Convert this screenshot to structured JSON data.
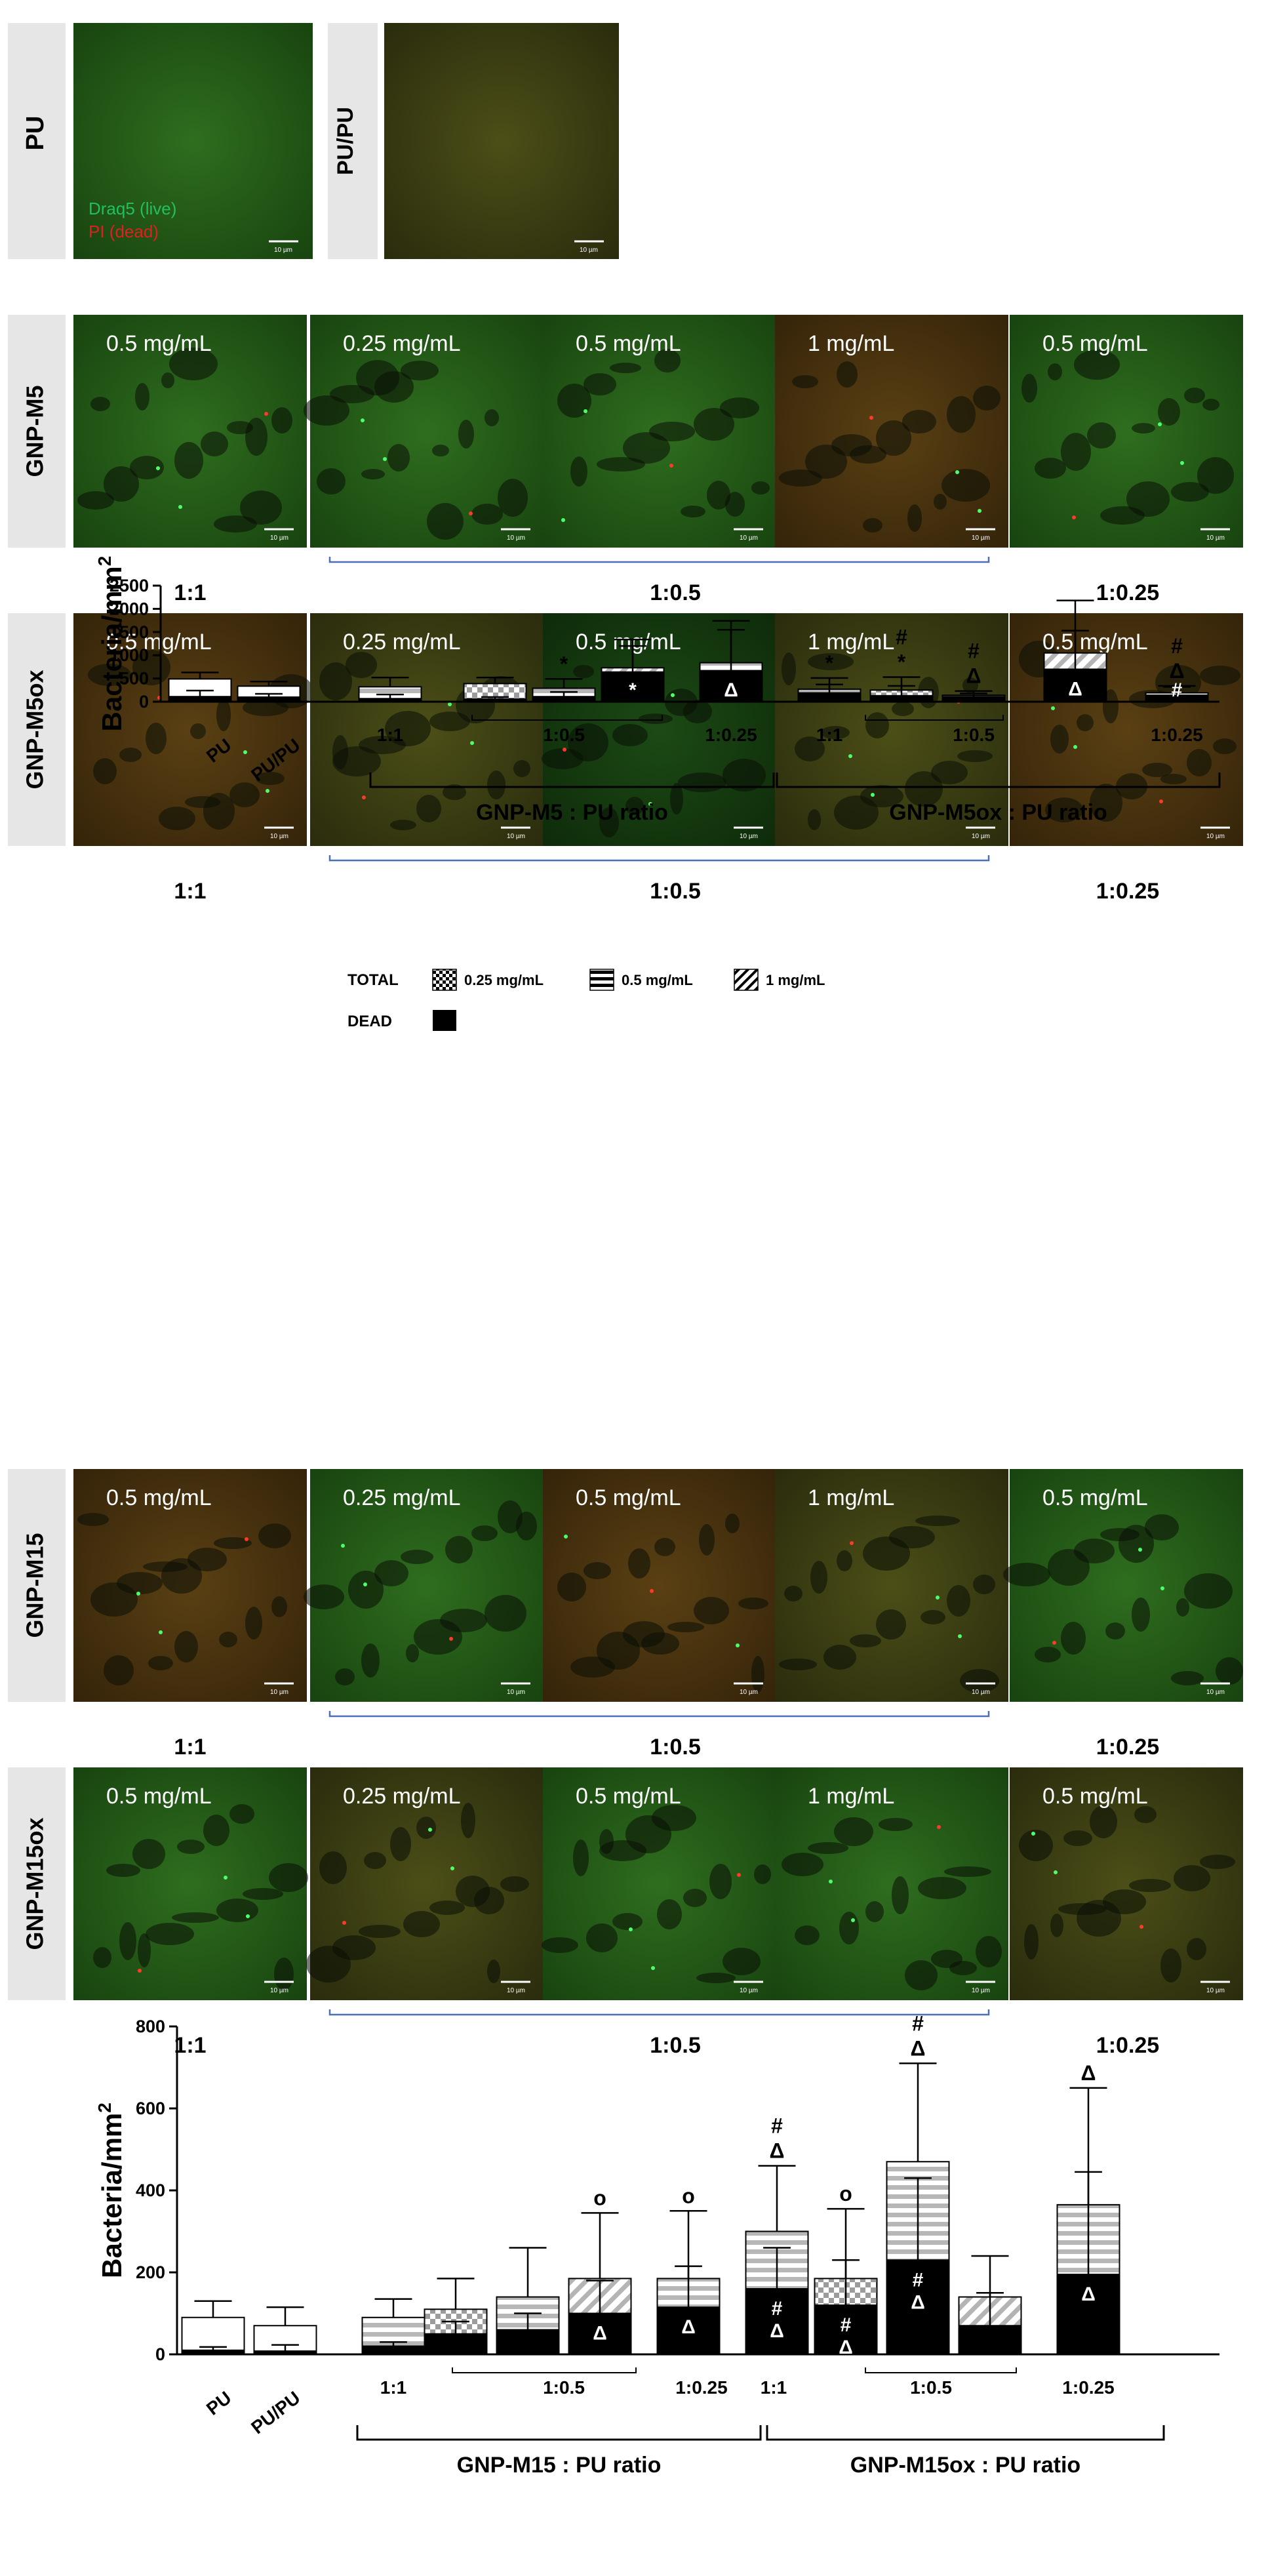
{
  "top_panels": [
    {
      "label": "PU",
      "legend_live": "Draq5 (live)",
      "legend_dead": "PI (dead)",
      "scale": "10 µm",
      "tone": "green"
    },
    {
      "label": "PU/PU",
      "scale": "10 µm",
      "tone": "olive"
    }
  ],
  "micrograph_rows": [
    {
      "row_label": "GNP-M5",
      "tiles": [
        {
          "conc": "0.5 mg/mL",
          "tone": "green"
        },
        {
          "conc": "0.25 mg/mL",
          "tone": "green"
        },
        {
          "conc": "0.5 mg/mL",
          "tone": "green"
        },
        {
          "conc": "1 mg/mL",
          "tone": "brown"
        },
        {
          "conc": "0.5 mg/mL",
          "tone": "green"
        }
      ],
      "ratios": [
        "1:1",
        "1:0.5",
        "1:0.25"
      ]
    },
    {
      "row_label": "GNP-M5ox",
      "tiles": [
        {
          "conc": "0.5 mg/mL",
          "tone": "brown"
        },
        {
          "conc": "0.25 mg/mL",
          "tone": "olive"
        },
        {
          "conc": "0.5 mg/mL",
          "tone": "darkgreen"
        },
        {
          "conc": "1 mg/mL",
          "tone": "olive"
        },
        {
          "conc": "0.5 mg/mL",
          "tone": "brown"
        }
      ],
      "ratios": [
        "1:1",
        "1:0.5",
        "1:0.25"
      ]
    },
    {
      "row_label": "GNP-M15",
      "tiles": [
        {
          "conc": "0.5 mg/mL",
          "tone": "brown"
        },
        {
          "conc": "0.25 mg/mL",
          "tone": "green"
        },
        {
          "conc": "0.5 mg/mL",
          "tone": "brown"
        },
        {
          "conc": "1 mg/mL",
          "tone": "olive"
        },
        {
          "conc": "0.5 mg/mL",
          "tone": "green"
        }
      ],
      "ratios": [
        "1:1",
        "1:0.5",
        "1:0.25"
      ]
    },
    {
      "row_label": "GNP-M15ox",
      "tiles": [
        {
          "conc": "0.5 mg/mL",
          "tone": "green"
        },
        {
          "conc": "0.25 mg/mL",
          "tone": "olive"
        },
        {
          "conc": "0.5 mg/mL",
          "tone": "green"
        },
        {
          "conc": "1 mg/mL",
          "tone": "green"
        },
        {
          "conc": "0.5 mg/mL",
          "tone": "olive"
        }
      ],
      "ratios": [
        "1:1",
        "1:0.5",
        "1:0.25"
      ]
    }
  ],
  "scale_bar": "10 µm",
  "colors": {
    "panel_label_bg": "#e6e6e6",
    "ratio_bracket": "#4a6fb5",
    "legend_live": "#20c060",
    "legend_dead": "#e02020"
  },
  "chart_data": [
    {
      "type": "bar",
      "ylabel": "Bacteria/mm",
      "ylabel_sup": "2",
      "ylim": [
        0,
        2500
      ],
      "yticks": [
        0,
        500,
        1000,
        1500,
        2000,
        2500
      ],
      "legend": {
        "total_label": "TOTAL",
        "dead_label": "DEAD",
        "items": [
          {
            "label": "0.25 mg/mL",
            "pattern": "check"
          },
          {
            "label": "0.5 mg/mL",
            "pattern": "hstripe"
          },
          {
            "label": "1 mg/mL",
            "pattern": "diag"
          }
        ]
      },
      "bars": [
        {
          "total": 490,
          "total_err": 140,
          "dead": 110,
          "dead_err": 130,
          "pattern": "white"
        },
        {
          "total": 335,
          "total_err": 100,
          "dead": 100,
          "dead_err": 70,
          "pattern": "white"
        },
        {
          "total": 320,
          "total_err": 200,
          "dead": 65,
          "dead_err": 90,
          "pattern": "hstripe"
        },
        {
          "total": 390,
          "total_err": 130,
          "dead": 60,
          "dead_err": 40,
          "pattern": "check"
        },
        {
          "total": 290,
          "total_err": 200,
          "dead": 110,
          "dead_err": 100,
          "pattern": "hstripe"
        },
        {
          "total": 730,
          "total_err": 610,
          "dead": 640,
          "dead_err": 560,
          "pattern": "diag"
        },
        {
          "total": 840,
          "total_err": 900,
          "dead": 670,
          "dead_err": 880,
          "pattern": "hstripe"
        },
        {
          "total": 270,
          "total_err": 240,
          "dead": 190,
          "dead_err": 180,
          "pattern": "hstripe"
        },
        {
          "total": 250,
          "total_err": 280,
          "dead": 130,
          "dead_err": 210,
          "pattern": "check"
        },
        {
          "total": 140,
          "total_err": 90,
          "dead": 110,
          "dead_err": 70,
          "pattern": "hstripe"
        },
        {
          "total": 1050,
          "total_err": 1130,
          "dead": 700,
          "dead_err": 830,
          "pattern": "diag"
        },
        {
          "total": 190,
          "total_err": 150,
          "dead": 140,
          "dead_err": 180,
          "pattern": "hstripe"
        }
      ],
      "annotations": [
        {
          "bar": 4,
          "text": "*"
        },
        {
          "bar": 5,
          "text": "*",
          "inside": true
        },
        {
          "bar": 6,
          "text": "Δ",
          "inside": true
        },
        {
          "bar": 7,
          "text": "*"
        },
        {
          "bar": 8,
          "text": "*"
        },
        {
          "bar": 8,
          "text": "#"
        },
        {
          "bar": 9,
          "text": "Δ"
        },
        {
          "bar": 9,
          "text": "#"
        },
        {
          "bar": 10,
          "text": "Δ",
          "inside": true
        },
        {
          "bar": 11,
          "text": "Δ"
        },
        {
          "bar": 11,
          "text": "#"
        },
        {
          "bar": 11,
          "text": "#",
          "inside": true
        }
      ],
      "group_labels": [
        {
          "text": "PU",
          "rotated": true
        },
        {
          "text": "PU/PU",
          "rotated": true
        },
        {
          "text": "1:1"
        },
        {
          "text": "1:0.5"
        },
        {
          "text": "1:0.25"
        },
        {
          "text": "1:1"
        },
        {
          "text": "1:0.5"
        },
        {
          "text": "1:0.25"
        }
      ],
      "bracket_labels": [
        "GNP-M5 : PU ratio",
        "GNP-M5ox : PU ratio"
      ]
    },
    {
      "type": "bar",
      "ylabel": "Bacteria/mm",
      "ylabel_sup": "2",
      "ylim": [
        0,
        800
      ],
      "yticks": [
        0,
        200,
        400,
        600,
        800
      ],
      "bars": [
        {
          "total": 90,
          "total_err": 40,
          "dead": 10,
          "dead_err": 8,
          "pattern": "white"
        },
        {
          "total": 70,
          "total_err": 45,
          "dead": 8,
          "dead_err": 15,
          "pattern": "white"
        },
        {
          "total": 90,
          "total_err": 45,
          "dead": 20,
          "dead_err": 10,
          "pattern": "hstripe"
        },
        {
          "total": 110,
          "total_err": 75,
          "dead": 50,
          "dead_err": 30,
          "pattern": "check"
        },
        {
          "total": 140,
          "total_err": 120,
          "dead": 60,
          "dead_err": 40,
          "pattern": "hstripe"
        },
        {
          "total": 185,
          "total_err": 160,
          "dead": 100,
          "dead_err": 80,
          "pattern": "diag"
        },
        {
          "total": 185,
          "total_err": 165,
          "dead": 115,
          "dead_err": 100,
          "pattern": "hstripe"
        },
        {
          "total": 300,
          "total_err": 160,
          "dead": 160,
          "dead_err": 100,
          "pattern": "hstripe"
        },
        {
          "total": 185,
          "total_err": 170,
          "dead": 120,
          "dead_err": 110,
          "pattern": "check"
        },
        {
          "total": 470,
          "total_err": 240,
          "dead": 230,
          "dead_err": 200,
          "pattern": "hstripe"
        },
        {
          "total": 140,
          "total_err": 100,
          "dead": 70,
          "dead_err": 80,
          "pattern": "diag"
        },
        {
          "total": 365,
          "total_err": 285,
          "dead": 195,
          "dead_err": 250,
          "pattern": "hstripe"
        }
      ],
      "annotations": [
        {
          "bar": 5,
          "text": "o"
        },
        {
          "bar": 5,
          "text": "Δ",
          "inside": true
        },
        {
          "bar": 6,
          "text": "o"
        },
        {
          "bar": 6,
          "text": "Δ",
          "inside": true
        },
        {
          "bar": 7,
          "text": "Δ"
        },
        {
          "bar": 7,
          "text": "#"
        },
        {
          "bar": 7,
          "text": "#",
          "inside": true
        },
        {
          "bar": 7,
          "text": "Δ",
          "inside": true
        },
        {
          "bar": 8,
          "text": "o"
        },
        {
          "bar": 8,
          "text": "#",
          "inside": true
        },
        {
          "bar": 8,
          "text": "Δ",
          "inside": true
        },
        {
          "bar": 9,
          "text": "Δ"
        },
        {
          "bar": 9,
          "text": "#"
        },
        {
          "bar": 9,
          "text": "#",
          "inside": true
        },
        {
          "bar": 9,
          "text": "Δ",
          "inside": true
        },
        {
          "bar": 11,
          "text": "Δ"
        },
        {
          "bar": 11,
          "text": "Δ",
          "inside": true
        }
      ],
      "group_labels": [
        {
          "text": "PU",
          "rotated": true
        },
        {
          "text": "PU/PU",
          "rotated": true
        },
        {
          "text": "1:1"
        },
        {
          "text": "1:0.5"
        },
        {
          "text": "1:0.25"
        },
        {
          "text": "1:1"
        },
        {
          "text": "1:0.5"
        },
        {
          "text": "1:0.25"
        }
      ],
      "bracket_labels": [
        "GNP-M15 : PU ratio",
        "GNP-M15ox : PU ratio"
      ]
    }
  ]
}
